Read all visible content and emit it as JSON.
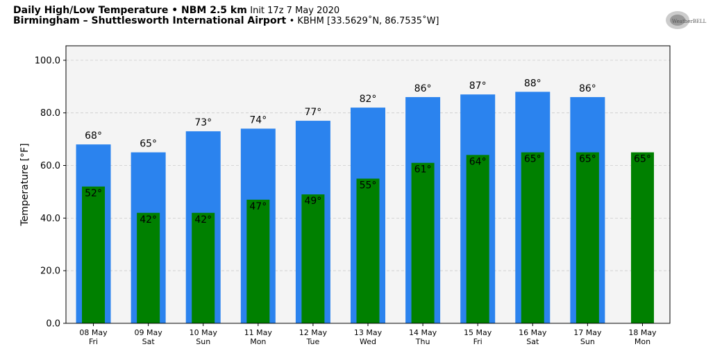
{
  "header": {
    "title_bold": "Daily High/Low Temperature • NBM 2.5 km",
    "title_init": "Init 17z 7 May 2020",
    "location_bold": "Birmingham – Shuttlesworth International Airport",
    "location_detail": "• KBHM [33.5629˚N, 86.7535˚W]",
    "logo_text": "WeatherBELL"
  },
  "chart_data": {
    "type": "bar",
    "title": "Daily High/Low Temperature",
    "xlabel": "",
    "ylabel": "Temperature [°F]",
    "ylim": [
      0,
      105.5
    ],
    "yticks": [
      "0.0",
      "20.0",
      "40.0",
      "60.0",
      "80.0",
      "100.0"
    ],
    "ytick_values": [
      0,
      20,
      40,
      60,
      80,
      100
    ],
    "grid": true,
    "categories": [
      {
        "date": "08 May",
        "day": "Fri"
      },
      {
        "date": "09 May",
        "day": "Sat"
      },
      {
        "date": "10 May",
        "day": "Sun"
      },
      {
        "date": "11 May",
        "day": "Mon"
      },
      {
        "date": "12 May",
        "day": "Tue"
      },
      {
        "date": "13 May",
        "day": "Wed"
      },
      {
        "date": "14 May",
        "day": "Thu"
      },
      {
        "date": "15 May",
        "day": "Fri"
      },
      {
        "date": "16 May",
        "day": "Sat"
      },
      {
        "date": "17 May",
        "day": "Sun"
      },
      {
        "date": "18 May",
        "day": "Mon"
      }
    ],
    "series": [
      {
        "name": "High",
        "color": "#2b83ee",
        "values": [
          68,
          65,
          73,
          74,
          77,
          82,
          86,
          87,
          88,
          86,
          null
        ],
        "labels": [
          "68°",
          "65°",
          "73°",
          "74°",
          "77°",
          "82°",
          "86°",
          "87°",
          "88°",
          "86°",
          null
        ]
      },
      {
        "name": "Low",
        "color": "#008000",
        "values": [
          52,
          42,
          42,
          47,
          49,
          55,
          61,
          64,
          65,
          65,
          65
        ],
        "labels": [
          "52°",
          "42°",
          "42°",
          "47°",
          "49°",
          "55°",
          "61°",
          "64°",
          "65°",
          "65°",
          "65°"
        ]
      }
    ]
  }
}
